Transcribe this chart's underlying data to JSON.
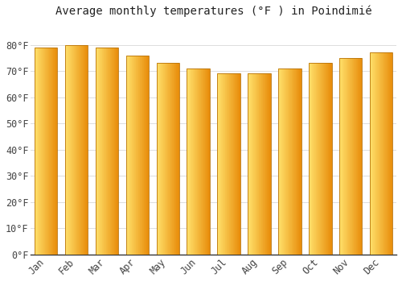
{
  "title": "Average monthly temperatures (°F ) in Poindimié",
  "months": [
    "Jan",
    "Feb",
    "Mar",
    "Apr",
    "May",
    "Jun",
    "Jul",
    "Aug",
    "Sep",
    "Oct",
    "Nov",
    "Dec"
  ],
  "values": [
    79,
    80,
    79,
    76,
    73,
    71,
    69,
    69,
    71,
    73,
    75,
    77
  ],
  "bar_color_left": "#FFD966",
  "bar_color_right": "#E8900A",
  "bar_edge_color": "#B8730A",
  "background_color": "#FFFFFF",
  "grid_color": "#DDDDDD",
  "ylim": [
    0,
    88
  ],
  "ytick_values": [
    0,
    10,
    20,
    30,
    40,
    50,
    60,
    70,
    80
  ],
  "title_fontsize": 10,
  "tick_fontsize": 8.5,
  "bar_width": 0.75
}
